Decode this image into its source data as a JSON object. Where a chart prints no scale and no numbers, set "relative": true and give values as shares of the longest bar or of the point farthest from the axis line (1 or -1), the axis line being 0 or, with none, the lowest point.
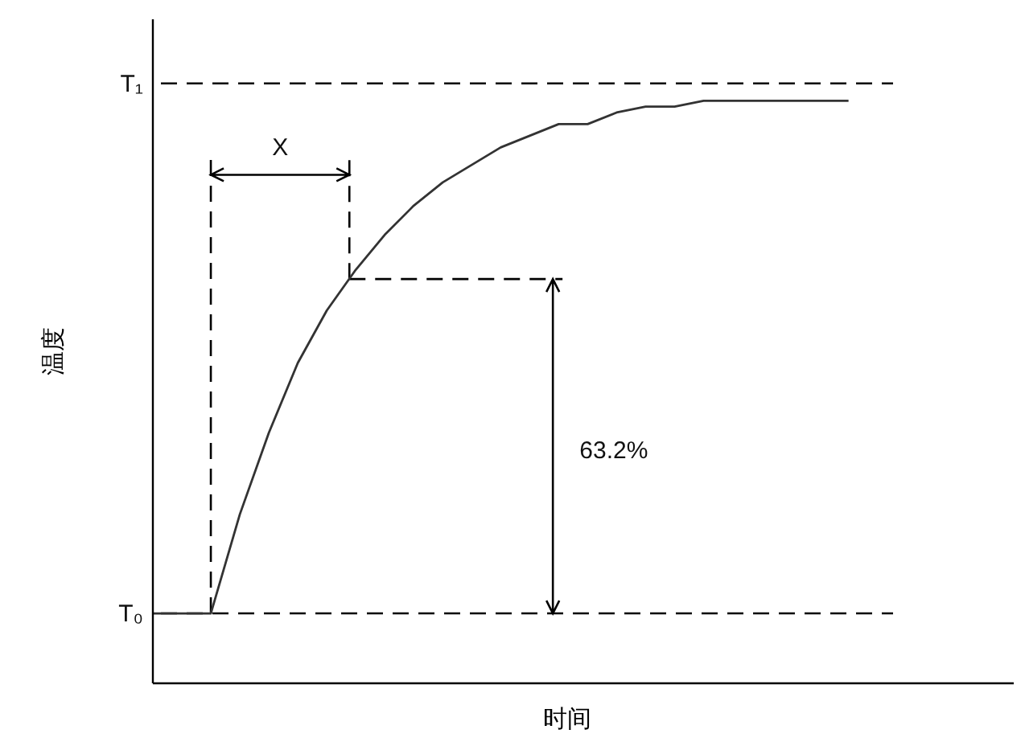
{
  "chart_data": {
    "type": "line",
    "xlabel": "时间",
    "ylabel": "温度",
    "relative": true,
    "categories": [
      null,
      null,
      null,
      null,
      null,
      null,
      null,
      null,
      null,
      null,
      null,
      null,
      null,
      null,
      null,
      null,
      null,
      null,
      null,
      null,
      null,
      null,
      null,
      null,
      null,
      null,
      null,
      null,
      null,
      null
    ],
    "values": [
      0.12,
      0.12,
      0.12,
      0.29,
      0.43,
      0.55,
      0.64,
      0.71,
      0.77,
      0.82,
      0.86,
      0.89,
      0.92,
      0.94,
      0.96,
      0.96,
      0.98,
      0.99,
      0.99,
      1,
      1,
      1,
      1,
      1,
      1,
      null,
      null,
      null,
      null,
      null
    ],
    "color": "#333333",
    "marker": "none",
    "line_style": "solid",
    "ref_lines": [
      {
        "axis": "y",
        "value": 1.03,
        "label": "T₁",
        "line_style": "dashed",
        "color": "#000000"
      },
      {
        "axis": "y",
        "value": 0.12,
        "label": "T₀",
        "line_style": "dashed",
        "color": "#000000"
      }
    ],
    "annotations": [
      "X",
      "63.2%"
    ]
  }
}
